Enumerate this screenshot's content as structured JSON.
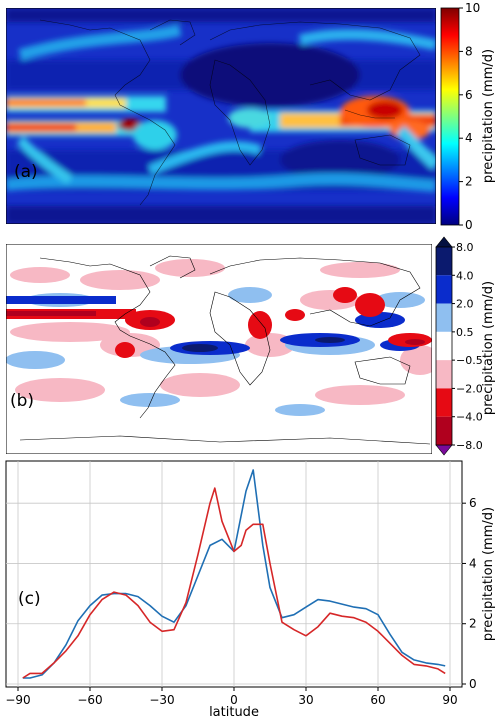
{
  "panel_a": {
    "tag": "(a)",
    "colorbar": {
      "label": "precipitation (mm/d)",
      "ticks": [
        "10",
        "8",
        "6",
        "4",
        "2",
        "0"
      ]
    }
  },
  "panel_b": {
    "tag": "(b)",
    "colorbar": {
      "label": "precipitation (mm/d)",
      "ticks": [
        "8.0",
        "4.0",
        "2.0",
        "0.5",
        "−0.5",
        "−2.0",
        "−4.0",
        "−8.0"
      ],
      "colors": [
        "#0b1a6e",
        "#0a2ccc",
        "#8fbff0",
        "#ffffff",
        "#f7b8c4",
        "#e60a14",
        "#b0001e"
      ]
    }
  },
  "panel_c": {
    "tag": "(c)",
    "xlabel": "latitude",
    "ylabel": "precipitation (mm/d)"
  },
  "chart_data": {
    "type": "line",
    "x_ticks": [
      "−90",
      "−60",
      "−30",
      "0",
      "30",
      "60",
      "90"
    ],
    "y_ticks": [
      "0",
      "2",
      "4",
      "6"
    ],
    "xlim": [
      -95,
      95
    ],
    "ylim": [
      -0.1,
      7.4
    ],
    "grid": true,
    "series": [
      {
        "color": "#1f6fb4",
        "x": [
          -88,
          -85,
          -80,
          -75,
          -70,
          -65,
          -60,
          -55,
          -50,
          -45,
          -40,
          -35,
          -30,
          -25,
          -20,
          -15,
          -10,
          -5,
          0,
          5,
          8,
          12,
          15,
          20,
          25,
          30,
          35,
          40,
          45,
          50,
          55,
          60,
          65,
          70,
          75,
          80,
          85,
          88
        ],
        "y": [
          0.2,
          0.2,
          0.3,
          0.7,
          1.3,
          2.1,
          2.6,
          2.95,
          3.0,
          3.0,
          2.9,
          2.6,
          2.25,
          2.05,
          2.6,
          3.6,
          4.6,
          4.8,
          4.4,
          6.4,
          7.1,
          4.6,
          3.2,
          2.2,
          2.3,
          2.55,
          2.8,
          2.75,
          2.65,
          2.55,
          2.5,
          2.3,
          1.65,
          1.05,
          0.8,
          0.7,
          0.65,
          0.6
        ]
      },
      {
        "color": "#d62728",
        "x": [
          -88,
          -85,
          -80,
          -75,
          -70,
          -65,
          -60,
          -55,
          -50,
          -45,
          -40,
          -35,
          -30,
          -25,
          -20,
          -15,
          -10,
          -8,
          -5,
          0,
          3,
          5,
          8,
          12,
          15,
          20,
          25,
          30,
          35,
          40,
          45,
          50,
          55,
          60,
          65,
          70,
          75,
          80,
          85,
          88
        ],
        "y": [
          0.2,
          0.35,
          0.35,
          0.7,
          1.1,
          1.6,
          2.3,
          2.8,
          3.05,
          2.95,
          2.6,
          2.05,
          1.75,
          1.8,
          2.7,
          4.3,
          6.0,
          6.5,
          5.4,
          4.4,
          4.6,
          5.1,
          5.3,
          5.3,
          4.0,
          2.05,
          1.8,
          1.6,
          1.9,
          2.35,
          2.25,
          2.2,
          2.05,
          1.75,
          1.35,
          0.95,
          0.65,
          0.6,
          0.5,
          0.35
        ]
      }
    ]
  }
}
